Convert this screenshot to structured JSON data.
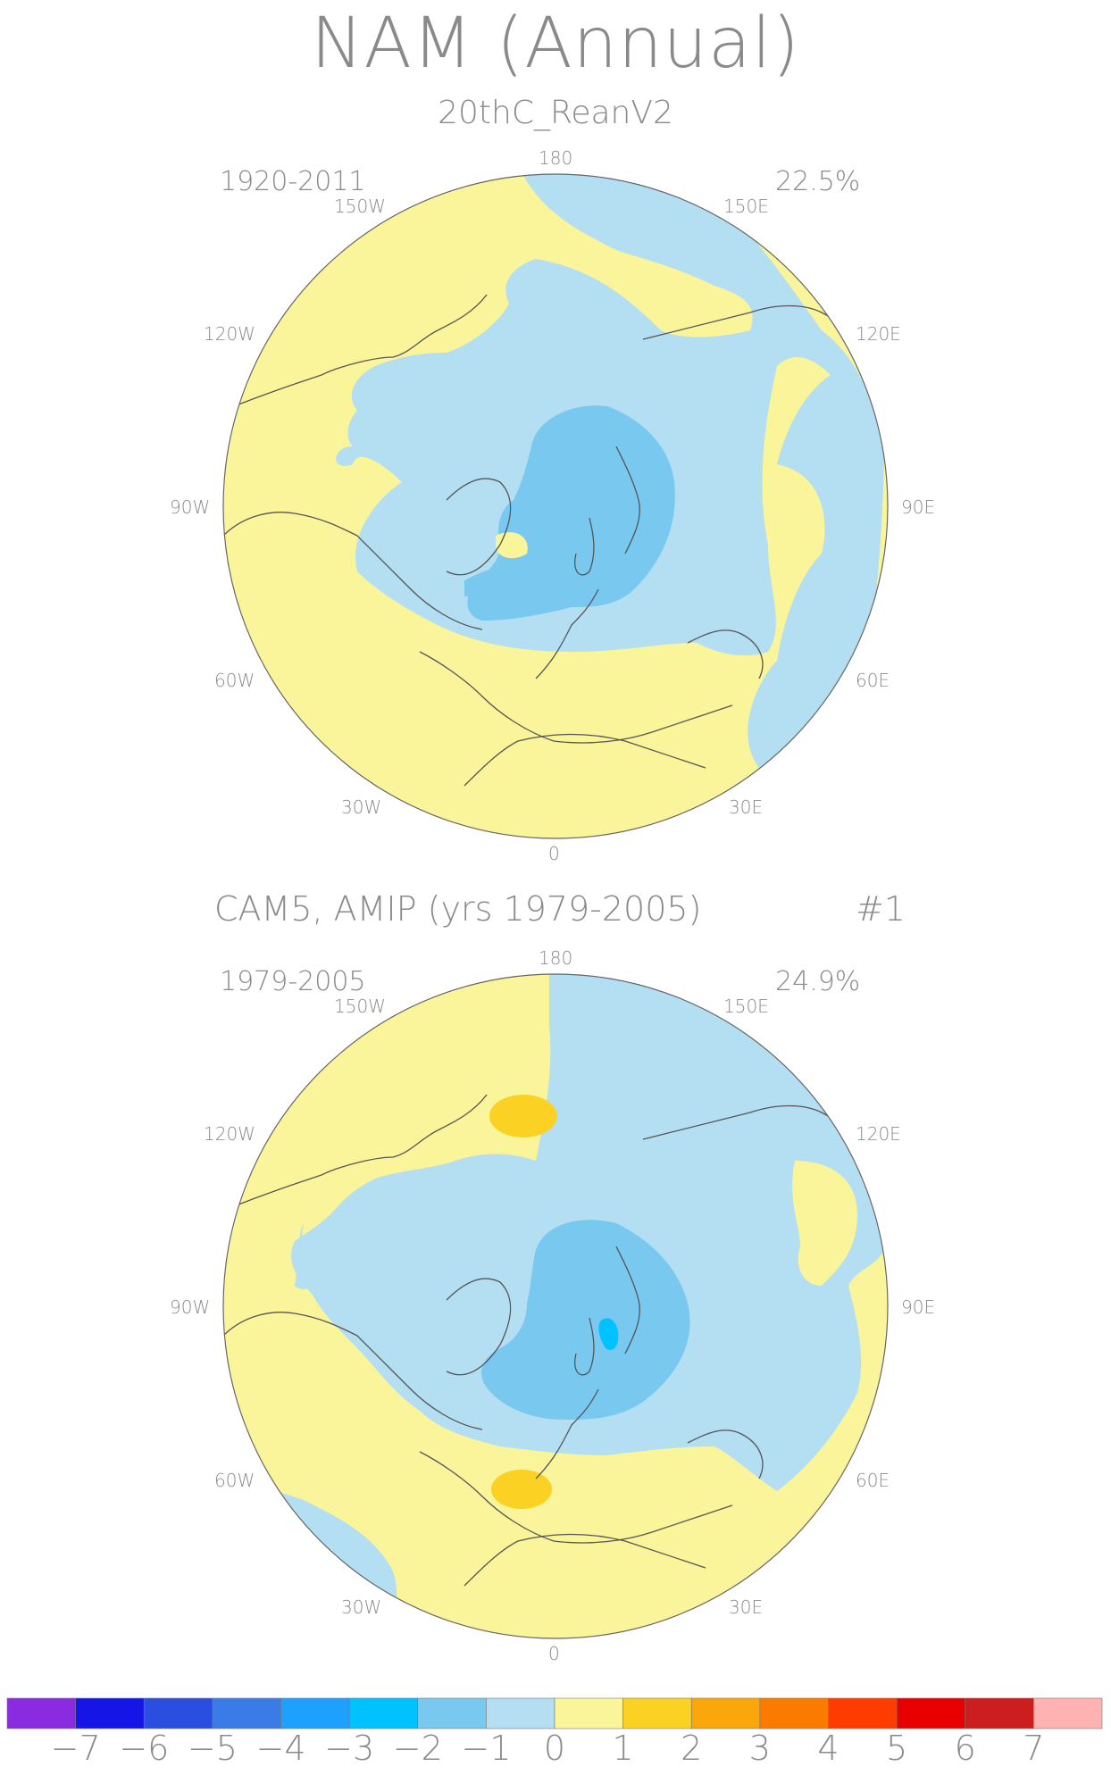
{
  "title": "NAM (Annual)",
  "panel1": {
    "subtitle": "20thC_ReanV2",
    "years": "1920-2011",
    "variance": "22.5%"
  },
  "panel2": {
    "title": "CAM5, AMIP (yrs 1979-2005)",
    "number": "#1",
    "years": "1979-2005",
    "variance": "24.9%"
  },
  "lon_labels": {
    "l180": "180",
    "l150w": "150W",
    "l150e": "150E",
    "l120w": "120W",
    "l120e": "120E",
    "l90w": "90W",
    "l90e": "90E",
    "l60w": "60W",
    "l60e": "60E",
    "l30w": "30W",
    "l30e": "30E",
    "l0": "0"
  },
  "colorbar": {
    "colors": [
      "#8a2be2",
      "#1515e8",
      "#2a4fe0",
      "#3a7be8",
      "#1ea0ff",
      "#00c2ff",
      "#78c8f0",
      "#b4def2",
      "#faf59a",
      "#fbd223",
      "#fba60a",
      "#fb7a00",
      "#ff3c00",
      "#e80000",
      "#cc1e1e",
      "#ffb2b2"
    ],
    "labels": [
      "−7",
      "−6",
      "−5",
      "−4",
      "−3",
      "−2",
      "−1",
      "0",
      "1",
      "2",
      "3",
      "4",
      "5",
      "6",
      "7"
    ]
  },
  "map_colors": {
    "positive_0_1": "#faf59a",
    "positive_1_2": "#fbd223",
    "negative_0_1": "#b4def2",
    "negative_1_2": "#78c8f0",
    "negative_2_3": "#00c2ff",
    "coastline": "#555555"
  }
}
